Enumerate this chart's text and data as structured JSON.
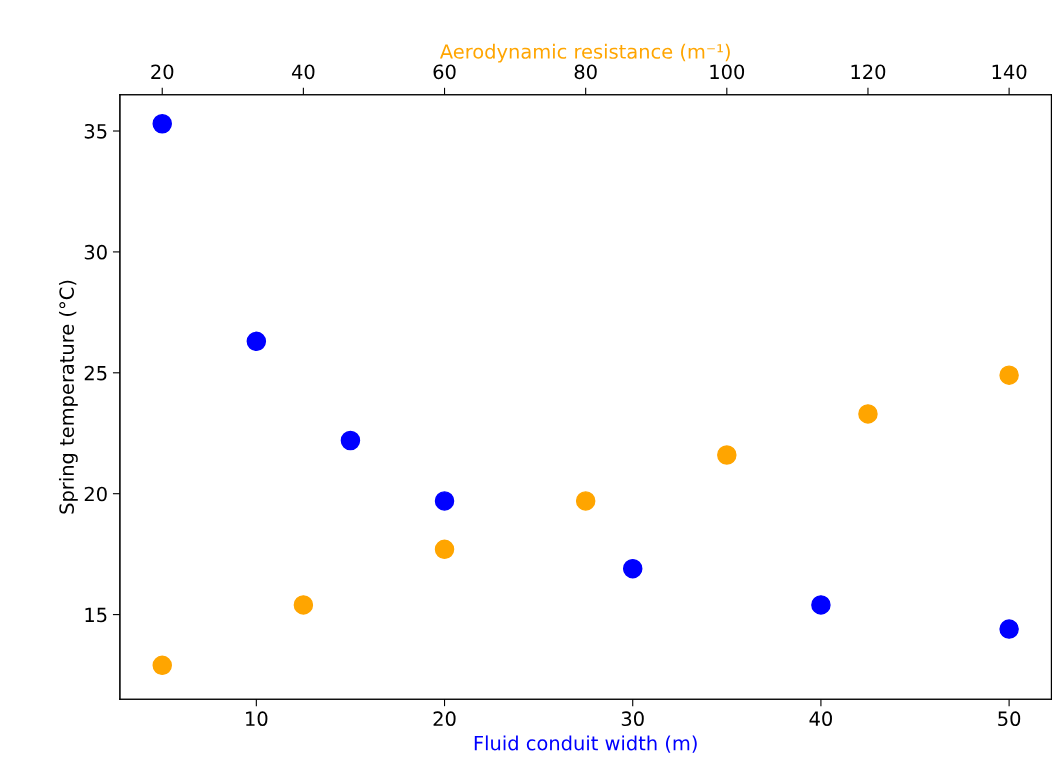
{
  "chart_data": {
    "type": "scatter",
    "xlabel": "Fluid conduit width (m)",
    "x2label": "Aerodynamic resistance (m⁻¹)",
    "ylabel": "Spring temperature (°C)",
    "xlim": [
      2.75,
      52.25
    ],
    "xticks": [
      10,
      20,
      30,
      40,
      50
    ],
    "x2lim": [
      14,
      146
    ],
    "x2ticks": [
      20,
      40,
      60,
      80,
      100,
      120,
      140
    ],
    "ylim": [
      11.5,
      36.5
    ],
    "yticks": [
      15,
      20,
      25,
      30,
      35
    ],
    "marker": "circle",
    "grid": false,
    "series": [
      {
        "color": "#0000ff",
        "x": [
          5,
          10,
          15,
          20,
          30,
          40,
          50
        ],
        "values": [
          35.3,
          26.3,
          22.2,
          19.7,
          16.9,
          15.4,
          14.4
        ]
      },
      {
        "color": "#ffa500",
        "axis": "x2",
        "x": [
          20,
          40,
          60,
          80,
          100,
          120,
          140
        ],
        "values": [
          12.9,
          15.4,
          17.7,
          19.7,
          21.6,
          23.3,
          24.9
        ]
      }
    ]
  }
}
